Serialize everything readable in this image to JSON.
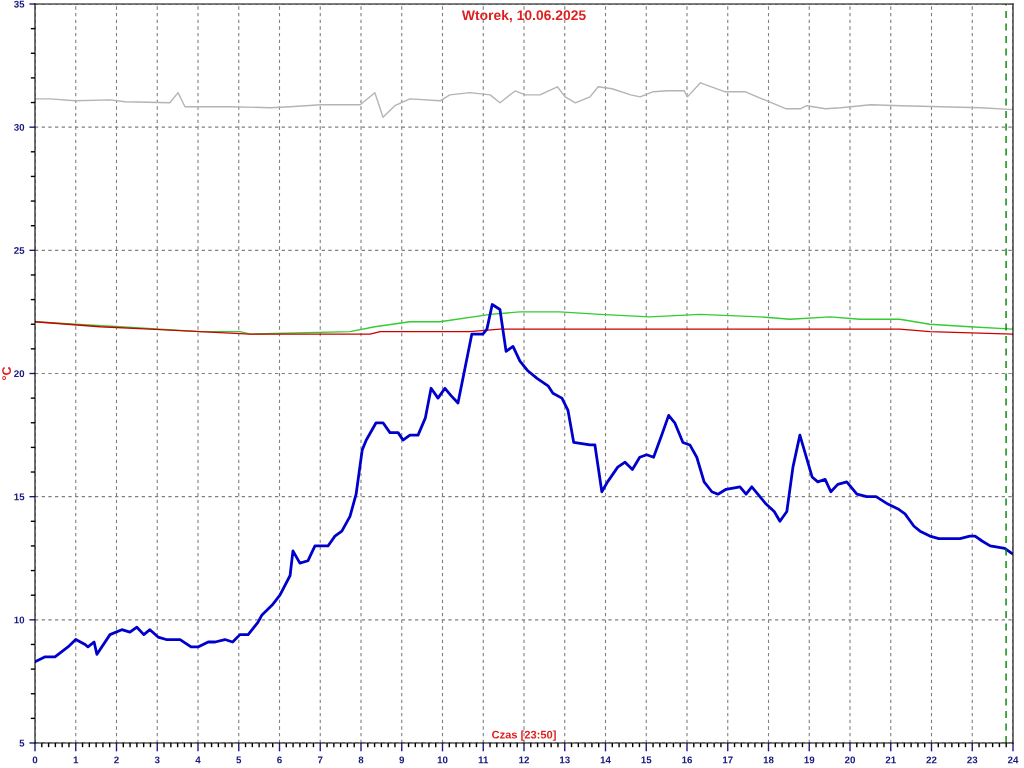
{
  "chart_data": {
    "type": "line",
    "title": "Wtorek, 10.06.2025",
    "xlabel": "Czas [23:50]",
    "ylabel": "°C",
    "xlim": [
      0,
      24
    ],
    "xticks": [
      0,
      1,
      2,
      3,
      4,
      5,
      6,
      7,
      8,
      9,
      10,
      11,
      12,
      13,
      14,
      15,
      16,
      17,
      18,
      19,
      20,
      21,
      22,
      23,
      24
    ],
    "ylim": [
      5,
      35
    ],
    "yticks": [
      5,
      {
        "value": 6,
        "label": null
      },
      {
        "value": 7,
        "label": null
      },
      {
        "value": 8,
        "label": null
      },
      {
        "value": 9,
        "label": null
      },
      10,
      {
        "value": 11,
        "label": null
      },
      {
        "value": 12,
        "label": null
      },
      {
        "value": 13,
        "label": null
      },
      {
        "value": 14,
        "label": null
      },
      15,
      {
        "value": 16,
        "label": null
      },
      {
        "value": 17,
        "label": null
      },
      {
        "value": 18,
        "label": null
      },
      {
        "value": 19,
        "label": null
      },
      20,
      {
        "value": 21,
        "label": null
      },
      {
        "value": 22,
        "label": null
      },
      {
        "value": 23,
        "label": null
      },
      {
        "value": 24,
        "label": null
      },
      25,
      {
        "value": 26,
        "label": null
      },
      {
        "value": 27,
        "label": null
      },
      {
        "value": 28,
        "label": null
      },
      {
        "value": 29,
        "label": null
      },
      30,
      {
        "value": 31,
        "label": null
      },
      {
        "value": 32,
        "label": null
      },
      {
        "value": 33,
        "label": null
      },
      {
        "value": 34,
        "label": null
      },
      35
    ],
    "grid": true,
    "line_style": "solid",
    "marker": "none",
    "ref_lines": [
      {
        "axis": "x",
        "value": 23.83,
        "color": "#008000",
        "line_style": "dashed"
      }
    ],
    "series": [
      {
        "color": "#b4b4b4",
        "x": [
          0,
          0.37,
          0.98,
          1.84,
          2.21,
          3.31,
          3.51,
          3.68,
          4.79,
          5.77,
          6.26,
          7.01,
          7.98,
          8.34,
          8.54,
          8.83,
          9.2,
          9.94,
          10.18,
          10.67,
          11.17,
          11.41,
          11.78,
          12.03,
          12.39,
          12.82,
          13.01,
          13.26,
          13.62,
          13.82,
          14.16,
          14.62,
          14.85,
          15.17,
          15.51,
          15.93,
          16.01,
          16.33,
          16.92,
          17.22,
          17.42,
          18.42,
          18.79,
          18.94,
          19.4,
          19.77,
          20.51,
          21.24,
          22.23,
          23.21,
          24
        ],
        "values": [
          31.15,
          31.15,
          31.07,
          31.11,
          31.03,
          30.99,
          31.4,
          30.83,
          30.83,
          30.79,
          30.83,
          30.91,
          30.91,
          31.4,
          30.4,
          30.87,
          31.15,
          31.07,
          31.31,
          31.4,
          31.31,
          30.99,
          31.47,
          31.31,
          31.31,
          31.64,
          31.23,
          30.99,
          31.23,
          31.64,
          31.56,
          31.31,
          31.23,
          31.44,
          31.48,
          31.48,
          31.23,
          31.8,
          31.44,
          31.44,
          31.44,
          30.75,
          30.75,
          30.87,
          30.75,
          30.79,
          30.91,
          30.87,
          30.83,
          30.79,
          30.71
        ]
      },
      {
        "color": "#33cc33",
        "x": [
          0,
          0.98,
          2.09,
          4.05,
          5.03,
          5.28,
          7.73,
          8.34,
          9.2,
          9.94,
          11.17,
          11.9,
          12.88,
          13.87,
          15.09,
          16.32,
          17.79,
          18.53,
          19.51,
          20.24,
          21.22,
          21.96,
          22.94,
          24
        ],
        "values": [
          22.1,
          22.0,
          21.9,
          21.7,
          21.7,
          21.6,
          21.7,
          21.9,
          22.1,
          22.1,
          22.4,
          22.5,
          22.5,
          22.4,
          22.3,
          22.4,
          22.3,
          22.2,
          22.3,
          22.2,
          22.2,
          22.0,
          21.9,
          21.8
        ]
      },
      {
        "color": "#cc0000",
        "x": [
          0,
          1.6,
          2.82,
          4.05,
          5.28,
          6.5,
          8.22,
          8.47,
          10.67,
          11.41,
          12.88,
          15.83,
          18.28,
          20.24,
          21.22,
          21.96,
          24
        ],
        "values": [
          22.1,
          21.9,
          21.8,
          21.7,
          21.6,
          21.6,
          21.6,
          21.7,
          21.7,
          21.8,
          21.8,
          21.8,
          21.8,
          21.8,
          21.8,
          21.7,
          21.6
        ]
      },
      {
        "color": "#0000cc",
        "x": [
          0,
          0.25,
          0.49,
          0.81,
          1.0,
          1.23,
          1.3,
          1.45,
          1.52,
          1.84,
          2.13,
          2.33,
          2.5,
          2.67,
          2.82,
          3.02,
          3.22,
          3.56,
          3.83,
          4.0,
          4.25,
          4.42,
          4.66,
          4.85,
          5.03,
          5.23,
          5.47,
          5.57,
          5.82,
          6.01,
          6.26,
          6.33,
          6.5,
          6.7,
          6.87,
          7.19,
          7.36,
          7.53,
          7.73,
          7.88,
          8.03,
          8.13,
          8.37,
          8.54,
          8.71,
          8.91,
          9.03,
          9.2,
          9.4,
          9.58,
          9.72,
          9.89,
          10.06,
          10.21,
          10.38,
          10.72,
          10.99,
          11.09,
          11.22,
          11.41,
          11.56,
          11.73,
          11.9,
          12.1,
          12.32,
          12.59,
          12.71,
          12.93,
          13.08,
          13.22,
          13.62,
          13.74,
          13.91,
          14.05,
          14.3,
          14.48,
          14.66,
          14.84,
          15.01,
          15.18,
          15.38,
          15.55,
          15.7,
          15.9,
          16.07,
          16.24,
          16.42,
          16.61,
          16.76,
          16.96,
          17.3,
          17.45,
          17.59,
          17.79,
          17.94,
          18.14,
          18.28,
          18.45,
          18.6,
          18.77,
          19.07,
          19.21,
          19.39,
          19.53,
          19.7,
          19.92,
          20.17,
          20.41,
          20.64,
          20.93,
          21.18,
          21.35,
          21.57,
          21.72,
          21.96,
          22.18,
          22.7,
          22.94,
          23.07,
          23.24,
          23.44,
          23.8,
          23.97
        ],
        "values": [
          8.3,
          8.5,
          8.5,
          8.9,
          9.2,
          9.0,
          8.9,
          9.1,
          8.6,
          9.4,
          9.6,
          9.5,
          9.7,
          9.4,
          9.6,
          9.3,
          9.2,
          9.2,
          8.9,
          8.9,
          9.1,
          9.1,
          9.2,
          9.1,
          9.4,
          9.4,
          9.9,
          10.2,
          10.6,
          11.0,
          11.8,
          12.8,
          12.3,
          12.4,
          13.0,
          13.0,
          13.4,
          13.6,
          14.2,
          15.1,
          16.9,
          17.3,
          18.0,
          18.0,
          17.6,
          17.6,
          17.3,
          17.5,
          17.5,
          18.2,
          19.4,
          19.0,
          19.4,
          19.1,
          18.8,
          21.6,
          21.6,
          21.8,
          22.8,
          22.6,
          20.9,
          21.1,
          20.5,
          20.1,
          19.8,
          19.5,
          19.2,
          19.0,
          18.5,
          17.2,
          17.1,
          17.1,
          15.2,
          15.6,
          16.2,
          16.4,
          16.1,
          16.6,
          16.7,
          16.6,
          17.5,
          18.3,
          18.0,
          17.2,
          17.1,
          16.6,
          15.6,
          15.2,
          15.1,
          15.3,
          15.4,
          15.1,
          15.4,
          15.0,
          14.7,
          14.4,
          14.0,
          14.4,
          16.2,
          17.5,
          15.8,
          15.6,
          15.7,
          15.2,
          15.5,
          15.6,
          15.1,
          15.0,
          15.0,
          14.7,
          14.5,
          14.3,
          13.8,
          13.6,
          13.4,
          13.3,
          13.3,
          13.4,
          13.4,
          13.2,
          13.0,
          12.9,
          12.7
        ]
      }
    ]
  }
}
